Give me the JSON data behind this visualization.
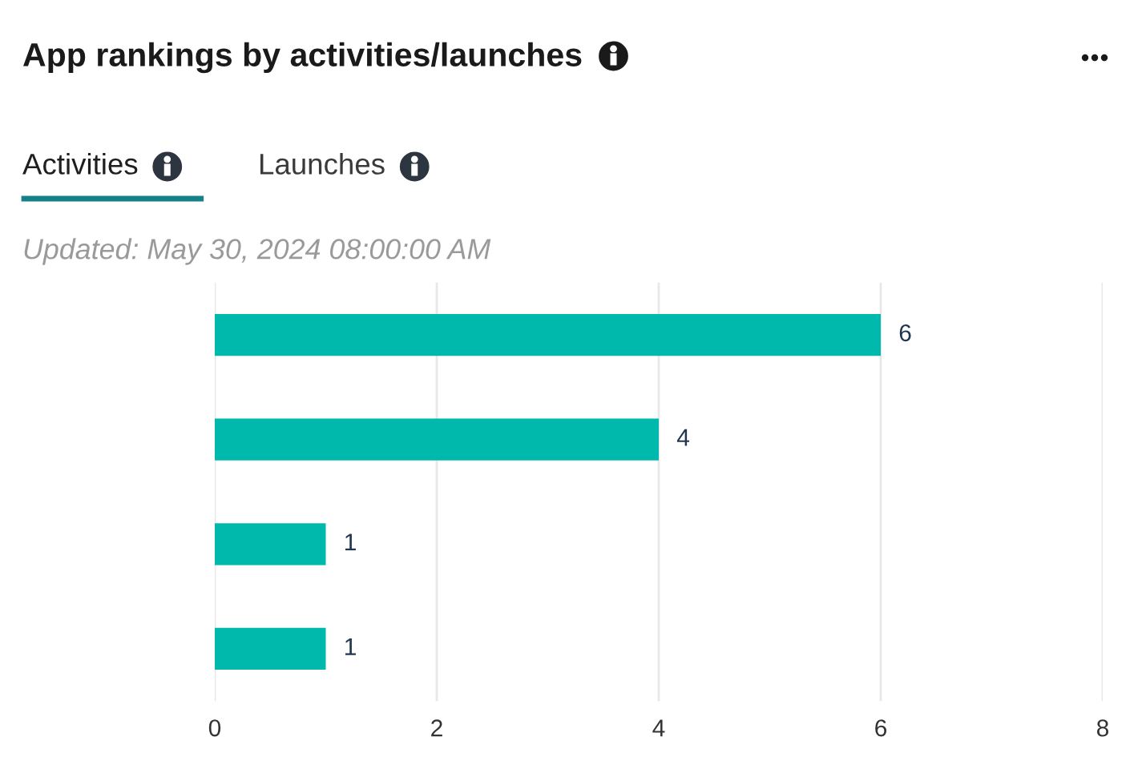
{
  "chart_data": {
    "type": "bar",
    "orientation": "horizontal",
    "title": "App rankings by activities/launches",
    "subtitle": "Updated: May 30, 2024 08:00:00 AM",
    "annotations": [
      "Activities",
      "Launches"
    ],
    "categories": [
      null,
      null,
      null,
      null
    ],
    "values": [
      6,
      4,
      1,
      1
    ],
    "color": "#00b9ad",
    "xlim": [
      0,
      8
    ],
    "xticks": [
      0,
      2,
      4,
      6,
      8
    ],
    "grid": "x",
    "data_labels": true
  }
}
